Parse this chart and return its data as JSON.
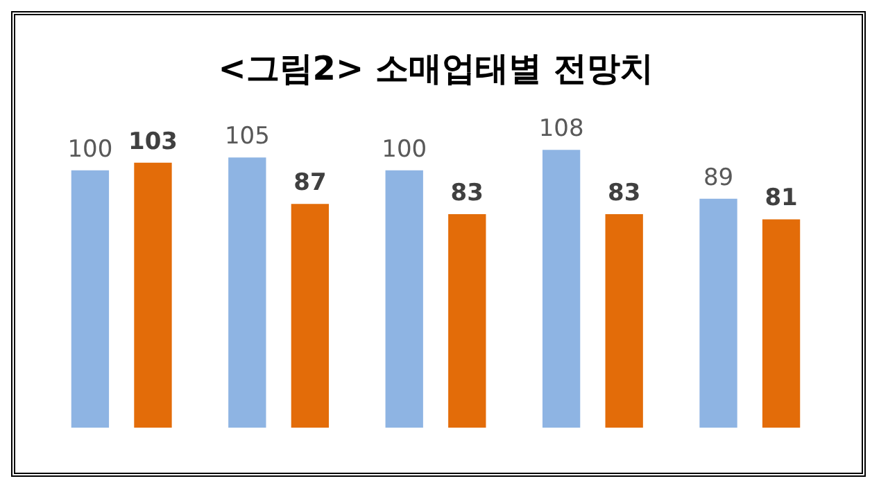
{
  "chart_data": {
    "type": "bar",
    "title": "<그림2> 소매업태별 전망치",
    "categories": [
      null,
      null,
      null,
      null,
      null
    ],
    "series": [
      {
        "color": "#8eb4e3",
        "values": [
          100,
          105,
          100,
          108,
          89
        ]
      },
      {
        "color": "#e36c09",
        "values": [
          103,
          87,
          83,
          83,
          81
        ]
      }
    ],
    "data_labels": true,
    "grid": false,
    "legend": false
  }
}
